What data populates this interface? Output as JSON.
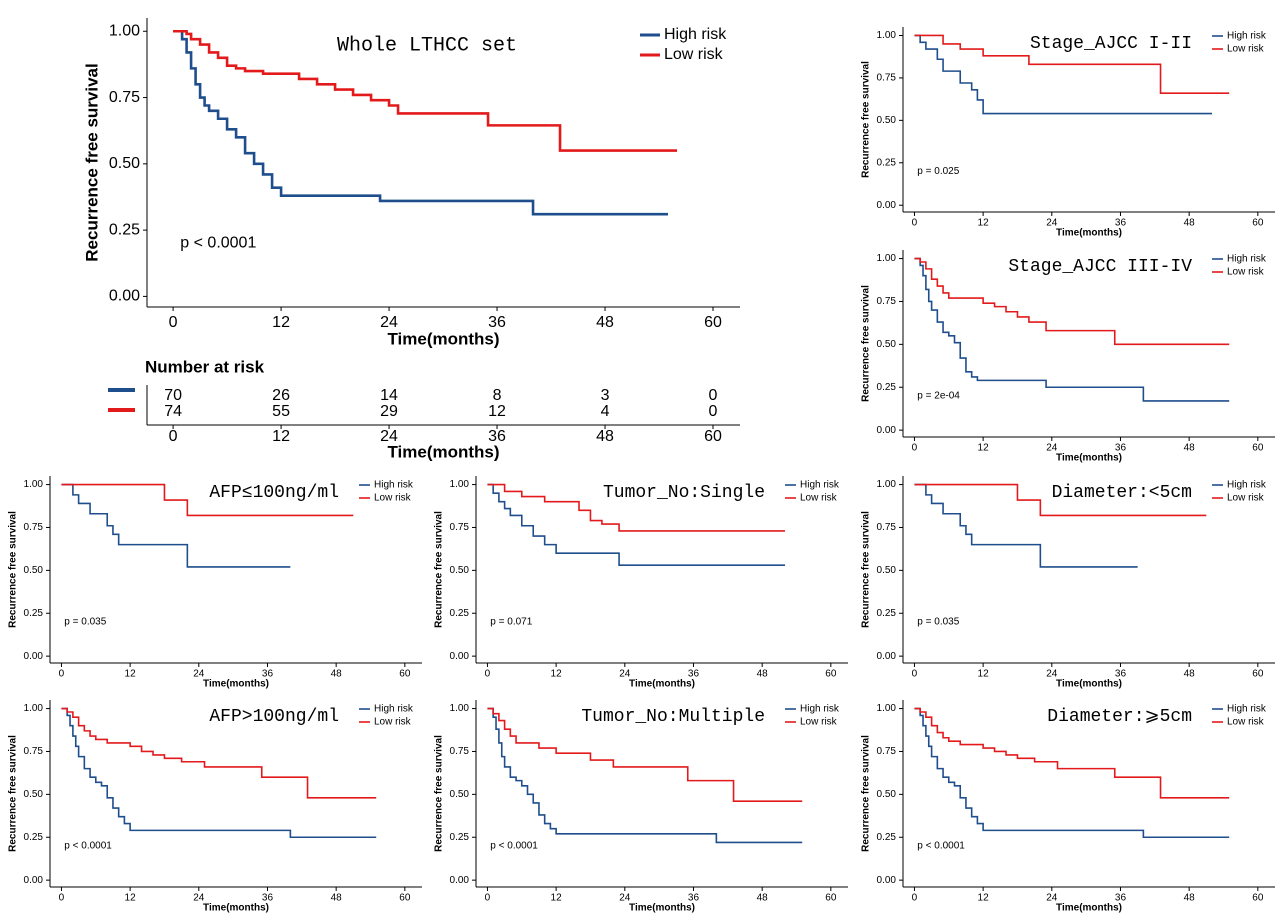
{
  "chart_data": [
    {
      "type": "line",
      "title": "Whole LTHCC set",
      "xlabel": "Time(months)",
      "ylabel": "Recurrence free survival",
      "annotation": "p < 0.0001",
      "xlim": [
        -2.9,
        63
      ],
      "ylim": [
        -0.04,
        1.05
      ],
      "xticks": [
        0,
        12,
        24,
        36,
        48,
        60
      ],
      "yticks": [
        {
          "value": 0,
          "label": "0.00"
        },
        {
          "value": 0.25,
          "label": "0.25"
        },
        {
          "value": 0.5,
          "label": "0.50"
        },
        {
          "value": 0.75,
          "label": "0.75"
        },
        {
          "value": 1,
          "label": "1.00"
        }
      ],
      "series": [
        {
          "name": "High risk",
          "color": "#1f4e8c",
          "x": [
            0,
            1,
            1.5,
            2,
            2.5,
            3,
            3.5,
            4,
            5,
            6,
            7,
            8,
            9,
            10,
            11,
            12,
            23,
            40,
            55
          ],
          "values": [
            1,
            0.97,
            0.92,
            0.86,
            0.8,
            0.75,
            0.72,
            0.7,
            0.67,
            0.63,
            0.6,
            0.54,
            0.5,
            0.46,
            0.41,
            0.38,
            0.36,
            0.31,
            0.31
          ]
        },
        {
          "name": "Low risk",
          "color": "#e31a1c",
          "x": [
            0,
            1.5,
            2,
            3,
            4,
            5,
            6,
            7,
            8,
            10,
            14,
            16,
            18,
            20,
            22,
            24,
            25,
            35,
            43,
            56
          ],
          "values": [
            1,
            0.99,
            0.97,
            0.95,
            0.92,
            0.9,
            0.87,
            0.86,
            0.85,
            0.84,
            0.82,
            0.8,
            0.78,
            0.76,
            0.74,
            0.72,
            0.69,
            0.645,
            0.55,
            0.55
          ]
        }
      ],
      "risk_table": {
        "title": "Number at risk",
        "xlabel": "Time(months)",
        "x": [
          0,
          12,
          24,
          36,
          48,
          60
        ],
        "series": [
          {
            "color": "#1f4e8c",
            "values": [
              70,
              26,
              14,
              8,
              3,
              0
            ]
          },
          {
            "color": "#e31a1c",
            "values": [
              74,
              55,
              29,
              12,
              4,
              0
            ]
          }
        ]
      }
    },
    {
      "type": "line",
      "title": "Stage_AJCC I-II",
      "xlabel": "Time(months)",
      "ylabel": "Recurrence free survival",
      "annotation": "p = 0.025",
      "xlim": [
        -2,
        63
      ],
      "ylim": [
        -0.04,
        1.05
      ],
      "xticks": [
        0,
        12,
        24,
        36,
        48,
        60
      ],
      "yticks": [
        {
          "value": 0,
          "label": "0.00"
        },
        {
          "value": 0.25,
          "label": "0.25"
        },
        {
          "value": 0.5,
          "label": "0.50"
        },
        {
          "value": 0.75,
          "label": "0.75"
        },
        {
          "value": 1,
          "label": "1.00"
        }
      ],
      "series": [
        {
          "name": "High risk",
          "color": "#1f4e8c",
          "x": [
            0,
            1,
            2,
            4,
            5,
            8,
            10,
            11,
            12,
            52
          ],
          "values": [
            1,
            0.96,
            0.92,
            0.86,
            0.79,
            0.72,
            0.68,
            0.62,
            0.54,
            0.54
          ]
        },
        {
          "name": "Low risk",
          "color": "#e31a1c",
          "x": [
            0,
            5,
            8,
            12,
            20,
            43,
            55
          ],
          "values": [
            1,
            0.95,
            0.92,
            0.88,
            0.83,
            0.66,
            0.66
          ]
        }
      ]
    },
    {
      "type": "line",
      "title": "Stage_AJCC III-IV",
      "xlabel": "Time(months)",
      "ylabel": "Recurrence free survival",
      "annotation": "p = 2e-04",
      "xlim": [
        -2,
        63
      ],
      "ylim": [
        -0.04,
        1.05
      ],
      "xticks": [
        0,
        12,
        24,
        36,
        48,
        60
      ],
      "yticks": [
        {
          "value": 0,
          "label": "0.00"
        },
        {
          "value": 0.25,
          "label": "0.25"
        },
        {
          "value": 0.5,
          "label": "0.50"
        },
        {
          "value": 0.75,
          "label": "0.75"
        },
        {
          "value": 1,
          "label": "1.00"
        }
      ],
      "series": [
        {
          "name": "High risk",
          "color": "#1f4e8c",
          "x": [
            0,
            1,
            1.5,
            2,
            2.5,
            3,
            4,
            5,
            6,
            7,
            8,
            9,
            10,
            11,
            23,
            40,
            55
          ],
          "values": [
            1,
            0.96,
            0.9,
            0.82,
            0.75,
            0.7,
            0.63,
            0.57,
            0.55,
            0.51,
            0.42,
            0.34,
            0.31,
            0.29,
            0.25,
            0.17,
            0.17
          ]
        },
        {
          "name": "Low risk",
          "color": "#e31a1c",
          "x": [
            0,
            1,
            2,
            3,
            4,
            5,
            6,
            12,
            14,
            16,
            18,
            20,
            23,
            35,
            55
          ],
          "values": [
            1,
            0.98,
            0.94,
            0.88,
            0.84,
            0.8,
            0.77,
            0.74,
            0.72,
            0.69,
            0.66,
            0.63,
            0.58,
            0.5,
            0.5
          ]
        }
      ]
    },
    {
      "type": "line",
      "title": "AFP≤100ng/ml",
      "xlabel": "Time(months)",
      "ylabel": "Recurrence free survival",
      "annotation": "p = 0.035",
      "xlim": [
        -2,
        63
      ],
      "ylim": [
        -0.04,
        1.05
      ],
      "xticks": [
        0,
        12,
        24,
        36,
        48,
        60
      ],
      "yticks": [
        {
          "value": 0,
          "label": "0.00"
        },
        {
          "value": 0.25,
          "label": "0.25"
        },
        {
          "value": 0.5,
          "label": "0.50"
        },
        {
          "value": 0.75,
          "label": "0.75"
        },
        {
          "value": 1,
          "label": "1.00"
        }
      ],
      "series": [
        {
          "name": "High risk",
          "color": "#1f4e8c",
          "x": [
            0,
            2,
            3,
            5,
            8,
            9,
            10,
            22,
            40
          ],
          "values": [
            1,
            0.94,
            0.89,
            0.83,
            0.76,
            0.71,
            0.65,
            0.52,
            0.52
          ]
        },
        {
          "name": "Low risk",
          "color": "#e31a1c",
          "x": [
            0,
            18,
            22,
            51
          ],
          "values": [
            1,
            0.91,
            0.82,
            0.82
          ]
        }
      ]
    },
    {
      "type": "line",
      "title": "Tumor_No:Single",
      "xlabel": "Time(months)",
      "ylabel": "Recurrence free survival",
      "annotation": "p = 0.071",
      "xlim": [
        -2,
        63
      ],
      "ylim": [
        -0.04,
        1.05
      ],
      "xticks": [
        0,
        12,
        24,
        36,
        48,
        60
      ],
      "yticks": [
        {
          "value": 0,
          "label": "0.00"
        },
        {
          "value": 0.25,
          "label": "0.25"
        },
        {
          "value": 0.5,
          "label": "0.50"
        },
        {
          "value": 0.75,
          "label": "0.75"
        },
        {
          "value": 1,
          "label": "1.00"
        }
      ],
      "series": [
        {
          "name": "High risk",
          "color": "#1f4e8c",
          "x": [
            0,
            1,
            2,
            3,
            4,
            6,
            8,
            10,
            12,
            23,
            52
          ],
          "values": [
            1,
            0.95,
            0.9,
            0.86,
            0.82,
            0.76,
            0.7,
            0.65,
            0.6,
            0.53,
            0.53
          ]
        },
        {
          "name": "Low risk",
          "color": "#e31a1c",
          "x": [
            0,
            3,
            6,
            10,
            16,
            18,
            20,
            23,
            52
          ],
          "values": [
            1,
            0.96,
            0.93,
            0.9,
            0.85,
            0.79,
            0.77,
            0.73,
            0.73
          ]
        }
      ]
    },
    {
      "type": "line",
      "title": "Diameter:<5cm",
      "xlabel": "Time(months)",
      "ylabel": "Recurrence free survival",
      "annotation": "p = 0.035",
      "xlim": [
        -2,
        63
      ],
      "ylim": [
        -0.04,
        1.05
      ],
      "xticks": [
        0,
        12,
        24,
        36,
        48,
        60
      ],
      "yticks": [
        {
          "value": 0,
          "label": "0.00"
        },
        {
          "value": 0.25,
          "label": "0.25"
        },
        {
          "value": 0.5,
          "label": "0.50"
        },
        {
          "value": 0.75,
          "label": "0.75"
        },
        {
          "value": 1,
          "label": "1.00"
        }
      ],
      "series": [
        {
          "name": "High risk",
          "color": "#1f4e8c",
          "x": [
            0,
            2,
            3,
            5,
            8,
            9,
            10,
            22,
            39
          ],
          "values": [
            1,
            0.94,
            0.89,
            0.83,
            0.76,
            0.71,
            0.65,
            0.52,
            0.52
          ]
        },
        {
          "name": "Low risk",
          "color": "#e31a1c",
          "x": [
            0,
            18,
            22,
            51
          ],
          "values": [
            1,
            0.91,
            0.82,
            0.82
          ]
        }
      ]
    },
    {
      "type": "line",
      "title": "AFP>100ng/ml",
      "xlabel": "Time(months)",
      "ylabel": "Recurrence free survival",
      "annotation": "p < 0.0001",
      "xlim": [
        -2,
        63
      ],
      "ylim": [
        -0.04,
        1.05
      ],
      "xticks": [
        0,
        12,
        24,
        36,
        48,
        60
      ],
      "yticks": [
        {
          "value": 0,
          "label": "0.00"
        },
        {
          "value": 0.25,
          "label": "0.25"
        },
        {
          "value": 0.5,
          "label": "0.50"
        },
        {
          "value": 0.75,
          "label": "0.75"
        },
        {
          "value": 1,
          "label": "1.00"
        }
      ],
      "series": [
        {
          "name": "High risk",
          "color": "#1f4e8c",
          "x": [
            0,
            1,
            1.5,
            2,
            2.5,
            3,
            4,
            5,
            6,
            7,
            8,
            9,
            10,
            11,
            12,
            40,
            55
          ],
          "values": [
            1,
            0.96,
            0.9,
            0.84,
            0.78,
            0.72,
            0.65,
            0.6,
            0.57,
            0.55,
            0.48,
            0.42,
            0.37,
            0.33,
            0.29,
            0.25,
            0.25
          ]
        },
        {
          "name": "Low risk",
          "color": "#e31a1c",
          "x": [
            0,
            1,
            2,
            3,
            4,
            5,
            6,
            8,
            12,
            14,
            16,
            18,
            21,
            25,
            35,
            43,
            55
          ],
          "values": [
            1,
            0.98,
            0.95,
            0.9,
            0.87,
            0.84,
            0.82,
            0.8,
            0.78,
            0.75,
            0.73,
            0.71,
            0.69,
            0.66,
            0.6,
            0.48,
            0.48
          ]
        }
      ]
    },
    {
      "type": "line",
      "title": "Tumor_No:Multiple",
      "xlabel": "Time(months)",
      "ylabel": "Recurrence free survival",
      "annotation": "p < 0.0001",
      "xlim": [
        -2,
        63
      ],
      "ylim": [
        -0.04,
        1.05
      ],
      "xticks": [
        0,
        12,
        24,
        36,
        48,
        60
      ],
      "yticks": [
        {
          "value": 0,
          "label": "0.00"
        },
        {
          "value": 0.25,
          "label": "0.25"
        },
        {
          "value": 0.5,
          "label": "0.50"
        },
        {
          "value": 0.75,
          "label": "0.75"
        },
        {
          "value": 1,
          "label": "1.00"
        }
      ],
      "series": [
        {
          "name": "High risk",
          "color": "#1f4e8c",
          "x": [
            0,
            1,
            1.5,
            2,
            2.5,
            3,
            4,
            5,
            6,
            7,
            8,
            9,
            10,
            11,
            12,
            40,
            55
          ],
          "values": [
            1,
            0.95,
            0.88,
            0.8,
            0.72,
            0.66,
            0.6,
            0.58,
            0.55,
            0.5,
            0.45,
            0.38,
            0.33,
            0.3,
            0.27,
            0.22,
            0.22
          ]
        },
        {
          "name": "Low risk",
          "color": "#e31a1c",
          "x": [
            0,
            1,
            2,
            3,
            4,
            5,
            9,
            12,
            18,
            22,
            35,
            43,
            55
          ],
          "values": [
            1,
            0.97,
            0.93,
            0.88,
            0.84,
            0.8,
            0.77,
            0.74,
            0.7,
            0.66,
            0.58,
            0.46,
            0.46
          ]
        }
      ]
    },
    {
      "type": "line",
      "title": "Diameter:⩾5cm",
      "xlabel": "Time(months)",
      "ylabel": "Recurrence free survival",
      "annotation": "p < 0.0001",
      "xlim": [
        -2,
        63
      ],
      "ylim": [
        -0.04,
        1.05
      ],
      "xticks": [
        0,
        12,
        24,
        36,
        48,
        60
      ],
      "yticks": [
        {
          "value": 0,
          "label": "0.00"
        },
        {
          "value": 0.25,
          "label": "0.25"
        },
        {
          "value": 0.5,
          "label": "0.50"
        },
        {
          "value": 0.75,
          "label": "0.75"
        },
        {
          "value": 1,
          "label": "1.00"
        }
      ],
      "series": [
        {
          "name": "High risk",
          "color": "#1f4e8c",
          "x": [
            0,
            1,
            1.5,
            2,
            2.5,
            3,
            4,
            5,
            6,
            7,
            8,
            9,
            10,
            11,
            12,
            40,
            55
          ],
          "values": [
            1,
            0.96,
            0.9,
            0.84,
            0.78,
            0.72,
            0.65,
            0.6,
            0.57,
            0.55,
            0.48,
            0.42,
            0.37,
            0.33,
            0.29,
            0.25,
            0.25
          ]
        },
        {
          "name": "Low risk",
          "color": "#e31a1c",
          "x": [
            0,
            1,
            2,
            3,
            4,
            5,
            6,
            8,
            12,
            14,
            16,
            18,
            21,
            25,
            35,
            43,
            55
          ],
          "values": [
            1,
            0.98,
            0.95,
            0.9,
            0.86,
            0.83,
            0.81,
            0.79,
            0.77,
            0.75,
            0.73,
            0.71,
            0.69,
            0.65,
            0.6,
            0.48,
            0.48
          ]
        }
      ]
    }
  ]
}
